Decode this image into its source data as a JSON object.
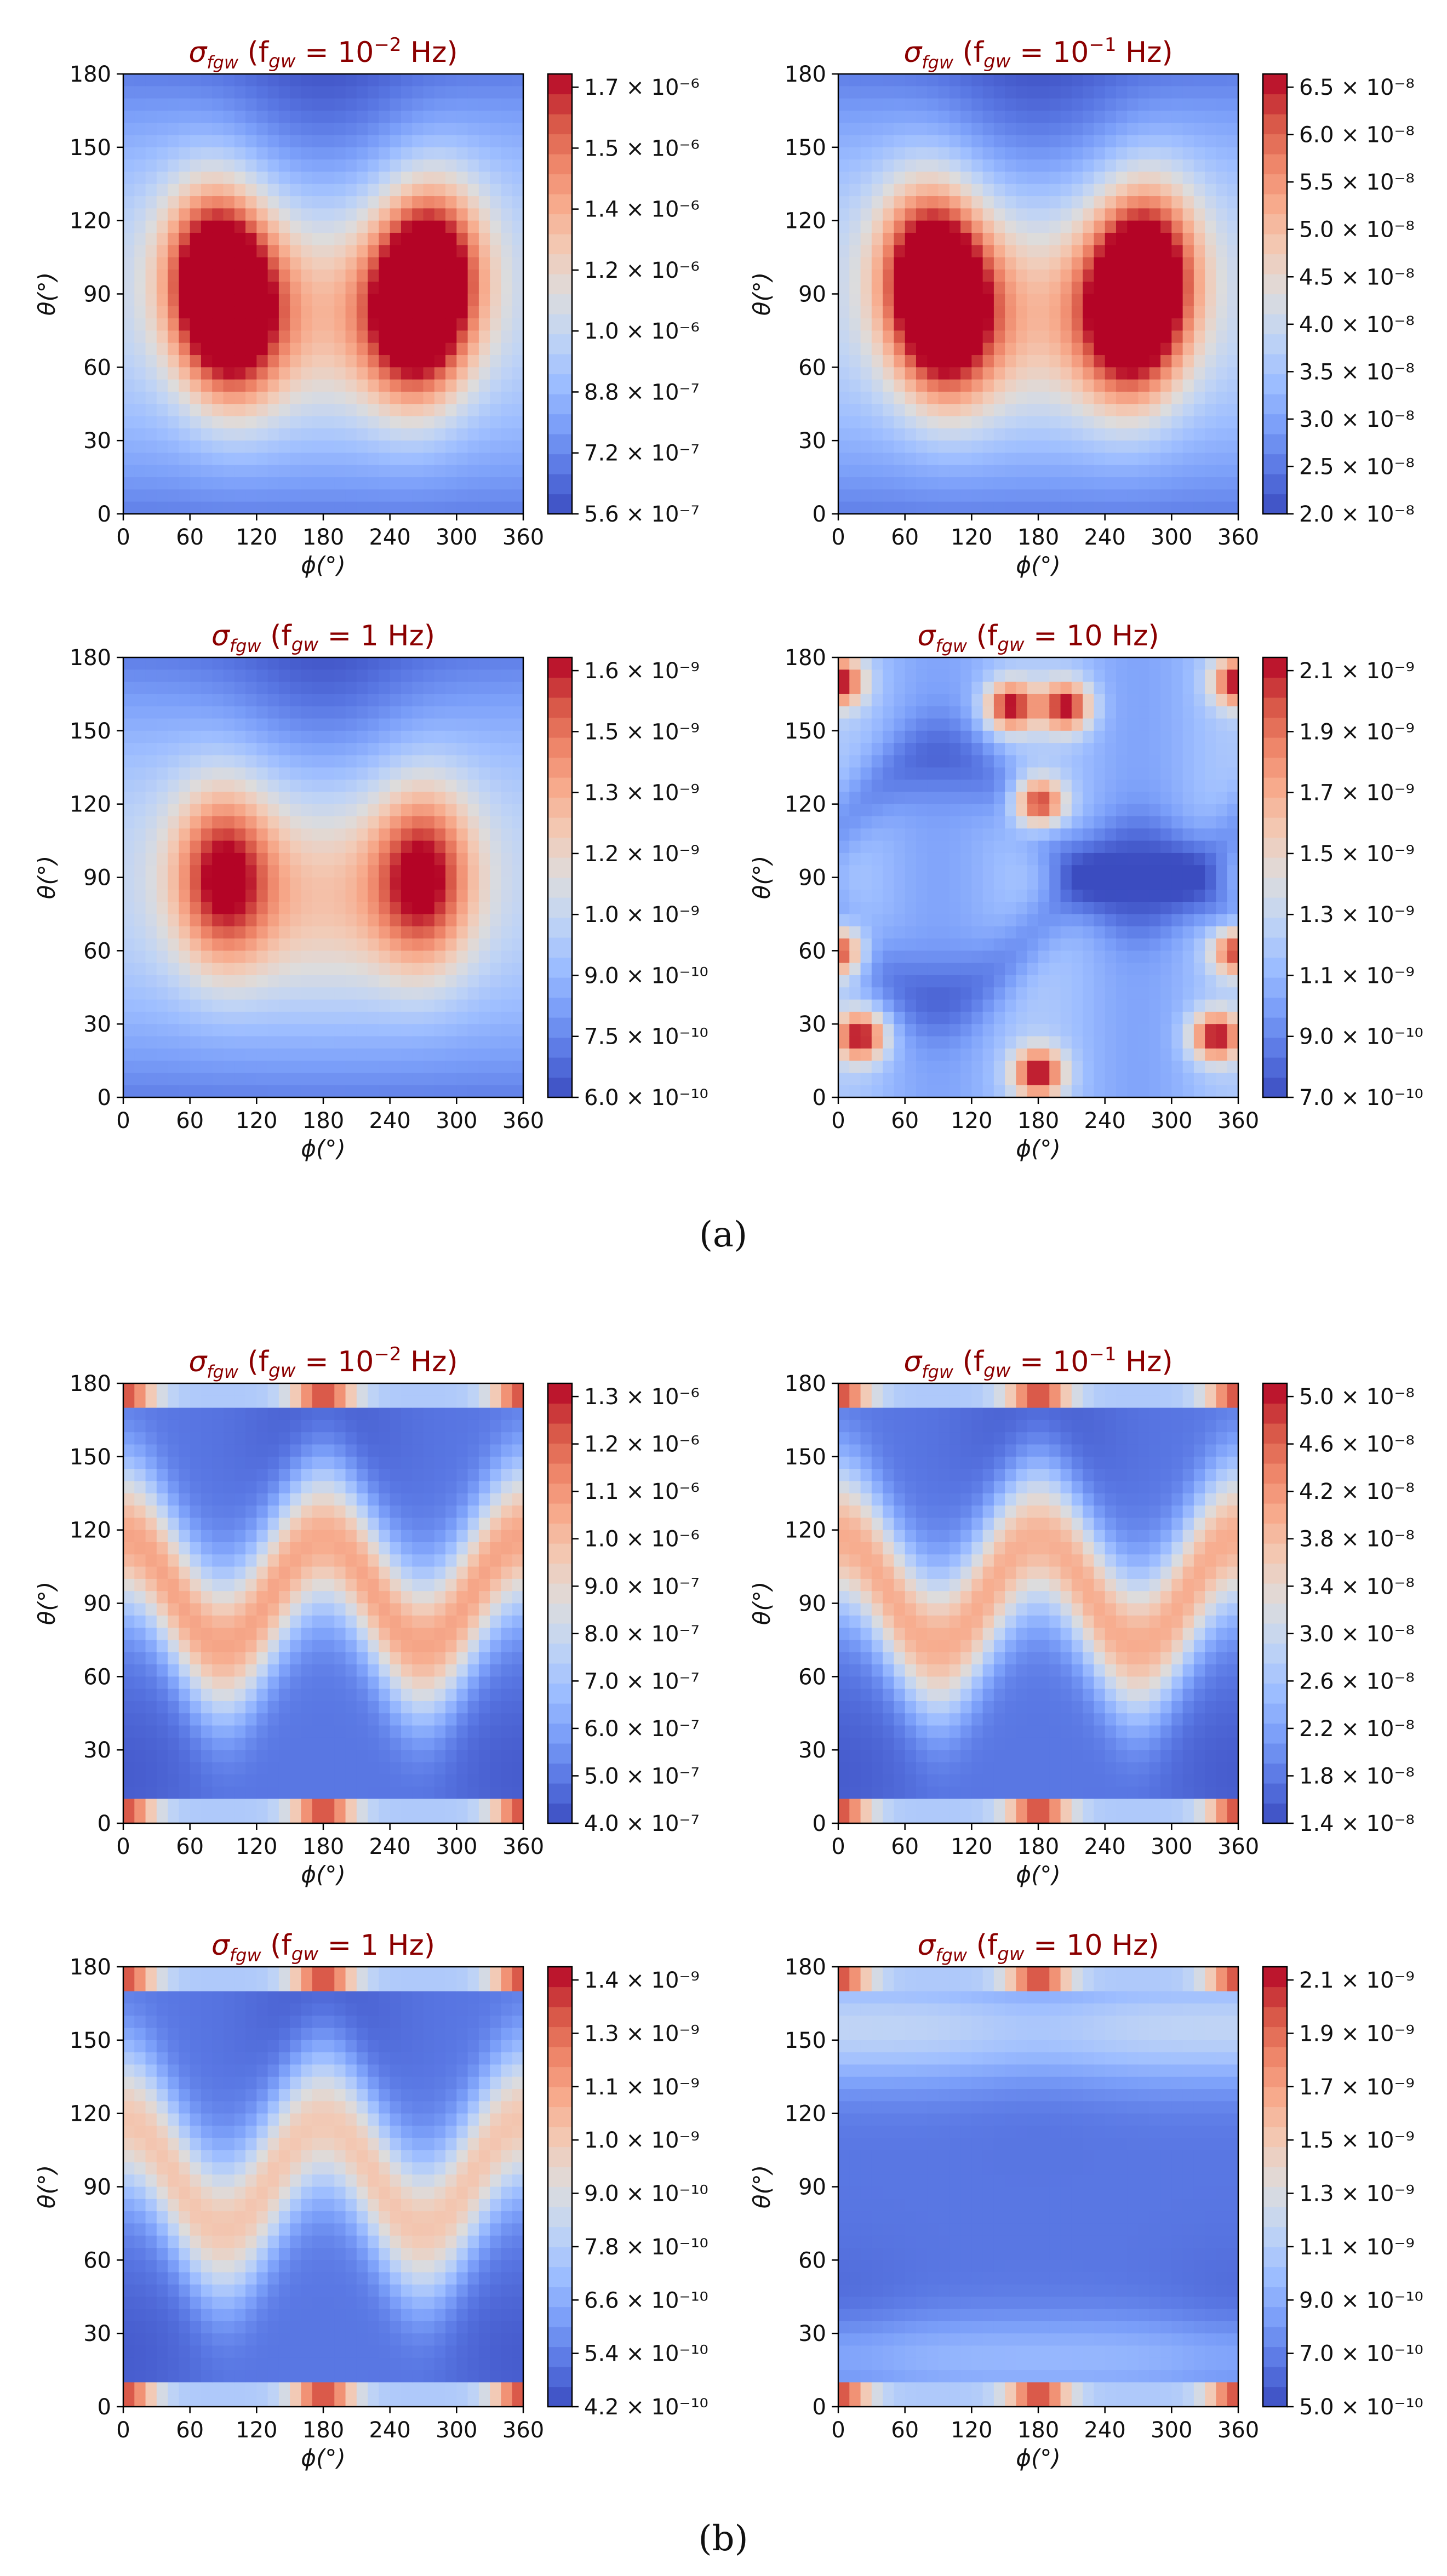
{
  "figure_labels": {
    "a": "(a)",
    "b": "(b)"
  },
  "colormap": [
    "#3b4cc0",
    "#5977e3",
    "#7b9ff9",
    "#9ebeff",
    "#c0d4f5",
    "#dddcdc",
    "#f2cbb7",
    "#f7ac8e",
    "#ee8468",
    "#d65244",
    "#b40426"
  ],
  "chart_data": [
    {
      "type": "heatmap",
      "group": "a",
      "title_prefix": "σ",
      "title_sub": "f_gw",
      "title_mid": " (f",
      "title_sub2": "gw",
      "title_eq": " = 10",
      "title_exp": "−2",
      "title_unit": " Hz)",
      "xlabel": "ϕ(°)",
      "ylabel": "θ(°)",
      "xlim": [
        0,
        360
      ],
      "ylim": [
        0,
        180
      ],
      "xticks": [
        "0",
        "60",
        "120",
        "180",
        "240",
        "300",
        "360"
      ],
      "yticks": [
        "0",
        "30",
        "60",
        "90",
        "120",
        "150",
        "180"
      ],
      "cbar_ticks": [
        "5.6 × 10⁻⁷",
        "7.2 × 10⁻⁷",
        "8.8 × 10⁻⁷",
        "1.0 × 10⁻⁶",
        "1.2 × 10⁻⁶",
        "1.4 × 10⁻⁶",
        "1.5 × 10⁻⁶",
        "1.7 × 10⁻⁶"
      ],
      "cbar_range": [
        5.6e-07,
        1.75e-06
      ],
      "pattern": "lobes",
      "peaks": [
        [
          80,
          100
        ],
        [
          280,
          100
        ],
        [
          100,
          80
        ],
        [
          260,
          80
        ]
      ]
    },
    {
      "type": "heatmap",
      "group": "a",
      "title_mid": " (f",
      "title_sub2": "gw",
      "title_eq": " = 10",
      "title_exp": "−1",
      "title_unit": " Hz)",
      "xlabel": "ϕ(°)",
      "ylabel": "θ(°)",
      "xlim": [
        0,
        360
      ],
      "ylim": [
        0,
        180
      ],
      "xticks": [
        "0",
        "60",
        "120",
        "180",
        "240",
        "300",
        "360"
      ],
      "yticks": [
        "0",
        "30",
        "60",
        "90",
        "120",
        "150",
        "180"
      ],
      "cbar_ticks": [
        "2.0 × 10⁻⁸",
        "2.5 × 10⁻⁸",
        "3.0 × 10⁻⁸",
        "3.5 × 10⁻⁸",
        "4.0 × 10⁻⁸",
        "4.5 × 10⁻⁸",
        "5.0 × 10⁻⁸",
        "5.5 × 10⁻⁸",
        "6.0 × 10⁻⁸",
        "6.5 × 10⁻⁸"
      ],
      "cbar_range": [
        2e-08,
        6.6e-08
      ],
      "pattern": "lobes",
      "peaks": [
        [
          80,
          100
        ],
        [
          280,
          100
        ],
        [
          100,
          80
        ],
        [
          260,
          80
        ]
      ]
    },
    {
      "type": "heatmap",
      "group": "a",
      "title_mid": " (f",
      "title_sub2": "gw",
      "title_eq": " = 1",
      "title_exp": "",
      "title_unit": " Hz)",
      "xlabel": "ϕ(°)",
      "ylabel": "θ(°)",
      "xlim": [
        0,
        360
      ],
      "ylim": [
        0,
        180
      ],
      "xticks": [
        "0",
        "60",
        "120",
        "180",
        "240",
        "300",
        "360"
      ],
      "yticks": [
        "0",
        "30",
        "60",
        "90",
        "120",
        "150",
        "180"
      ],
      "cbar_ticks": [
        "6.0 × 10⁻¹⁰",
        "7.5 × 10⁻¹⁰",
        "9.0 × 10⁻¹⁰",
        "1.0 × 10⁻⁹",
        "1.2 × 10⁻⁹",
        "1.3 × 10⁻⁹",
        "1.5 × 10⁻⁹",
        "1.6 × 10⁻⁹"
      ],
      "cbar_range": [
        6e-10,
        1.6e-09
      ],
      "pattern": "lobes",
      "peaks": [
        [
          90,
          90
        ],
        [
          270,
          90
        ]
      ]
    },
    {
      "type": "heatmap",
      "group": "a",
      "title_mid": " (f",
      "title_sub2": "gw",
      "title_eq": " = 10",
      "title_exp": "",
      "title_unit": " Hz)",
      "xlabel": "ϕ(°)",
      "ylabel": "θ(°)",
      "xlim": [
        0,
        360
      ],
      "ylim": [
        0,
        180
      ],
      "xticks": [
        "0",
        "60",
        "120",
        "180",
        "240",
        "300",
        "360"
      ],
      "yticks": [
        "0",
        "30",
        "60",
        "90",
        "120",
        "150",
        "180"
      ],
      "cbar_ticks": [
        "7.0 × 10⁻¹⁰",
        "9.0 × 10⁻¹⁰",
        "1.1 × 10⁻⁹",
        "1.3 × 10⁻⁹",
        "1.5 × 10⁻⁹",
        "1.7 × 10⁻⁹",
        "1.9 × 10⁻⁹",
        "2.1 × 10⁻⁹"
      ],
      "cbar_range": [
        7e-10,
        2.1e-09
      ],
      "pattern": "spots",
      "peaks": [
        [
          180,
          120
        ],
        [
          180,
          10
        ],
        [
          0,
          60
        ],
        [
          360,
          60
        ],
        [
          0,
          170
        ],
        [
          360,
          170
        ],
        [
          155,
          160
        ],
        [
          205,
          160
        ],
        [
          20,
          25
        ],
        [
          340,
          25
        ]
      ]
    },
    {
      "type": "heatmap",
      "group": "b",
      "title_mid": " (f",
      "title_sub2": "gw",
      "title_eq": " = 10",
      "title_exp": "−2",
      "title_unit": " Hz)",
      "xlabel": "ϕ(°)",
      "ylabel": "θ(°)",
      "xlim": [
        0,
        360
      ],
      "ylim": [
        0,
        180
      ],
      "xticks": [
        "0",
        "60",
        "120",
        "180",
        "240",
        "300",
        "360"
      ],
      "yticks": [
        "0",
        "30",
        "60",
        "90",
        "120",
        "150",
        "180"
      ],
      "cbar_ticks": [
        "4.0 × 10⁻⁷",
        "5.0 × 10⁻⁷",
        "6.0 × 10⁻⁷",
        "7.0 × 10⁻⁷",
        "8.0 × 10⁻⁷",
        "9.0 × 10⁻⁷",
        "1.0 × 10⁻⁶",
        "1.1 × 10⁻⁶",
        "1.2 × 10⁻⁶",
        "1.3 × 10⁻⁶"
      ],
      "cbar_range": [
        4e-07,
        1.35e-06
      ],
      "pattern": "wave",
      "band_level": 0.62
    },
    {
      "type": "heatmap",
      "group": "b",
      "title_mid": " (f",
      "title_sub2": "gw",
      "title_eq": " = 10",
      "title_exp": "−1",
      "title_unit": " Hz)",
      "xlabel": "ϕ(°)",
      "ylabel": "θ(°)",
      "xlim": [
        0,
        360
      ],
      "ylim": [
        0,
        180
      ],
      "xticks": [
        "0",
        "60",
        "120",
        "180",
        "240",
        "300",
        "360"
      ],
      "yticks": [
        "0",
        "30",
        "60",
        "90",
        "120",
        "150",
        "180"
      ],
      "cbar_ticks": [
        "1.4 × 10⁻⁸",
        "1.8 × 10⁻⁸",
        "2.2 × 10⁻⁸",
        "2.6 × 10⁻⁸",
        "3.0 × 10⁻⁸",
        "3.4 × 10⁻⁸",
        "3.8 × 10⁻⁸",
        "4.2 × 10⁻⁸",
        "4.6 × 10⁻⁸",
        "5.0 × 10⁻⁸"
      ],
      "cbar_range": [
        1.4e-08,
        5e-08
      ],
      "pattern": "wave",
      "band_level": 0.6
    },
    {
      "type": "heatmap",
      "group": "b",
      "title_mid": " (f",
      "title_sub2": "gw",
      "title_eq": " = 1",
      "title_exp": "",
      "title_unit": " Hz)",
      "xlabel": "ϕ(°)",
      "ylabel": "θ(°)",
      "xlim": [
        0,
        360
      ],
      "ylim": [
        0,
        180
      ],
      "xticks": [
        "0",
        "60",
        "120",
        "180",
        "240",
        "300",
        "360"
      ],
      "yticks": [
        "0",
        "30",
        "60",
        "90",
        "120",
        "150",
        "180"
      ],
      "cbar_ticks": [
        "4.2 × 10⁻¹⁰",
        "5.4 × 10⁻¹⁰",
        "6.6 × 10⁻¹⁰",
        "7.8 × 10⁻¹⁰",
        "9.0 × 10⁻¹⁰",
        "1.0 × 10⁻⁹",
        "1.1 × 10⁻⁹",
        "1.3 × 10⁻⁹",
        "1.4 × 10⁻⁹"
      ],
      "cbar_range": [
        4.2e-10,
        1.45e-09
      ],
      "pattern": "wave",
      "band_level": 0.52
    },
    {
      "type": "heatmap",
      "group": "b",
      "title_mid": " (f",
      "title_sub2": "gw",
      "title_eq": " = 10",
      "title_exp": "",
      "title_unit": " Hz)",
      "xlabel": "ϕ(°)",
      "ylabel": "θ(°)",
      "xlim": [
        0,
        360
      ],
      "ylim": [
        0,
        180
      ],
      "xticks": [
        "0",
        "60",
        "120",
        "180",
        "240",
        "300",
        "360"
      ],
      "yticks": [
        "0",
        "30",
        "60",
        "90",
        "120",
        "150",
        "180"
      ],
      "cbar_ticks": [
        "5.0 × 10⁻¹⁰",
        "7.0 × 10⁻¹⁰",
        "9.0 × 10⁻¹⁰",
        "1.1 × 10⁻⁹",
        "1.3 × 10⁻⁹",
        "1.5 × 10⁻⁹",
        "1.7 × 10⁻⁹",
        "1.9 × 10⁻⁹",
        "2.1 × 10⁻⁹"
      ],
      "cbar_range": [
        5e-10,
        2.2e-09
      ],
      "pattern": "faint",
      "band_level": 0.3
    }
  ]
}
